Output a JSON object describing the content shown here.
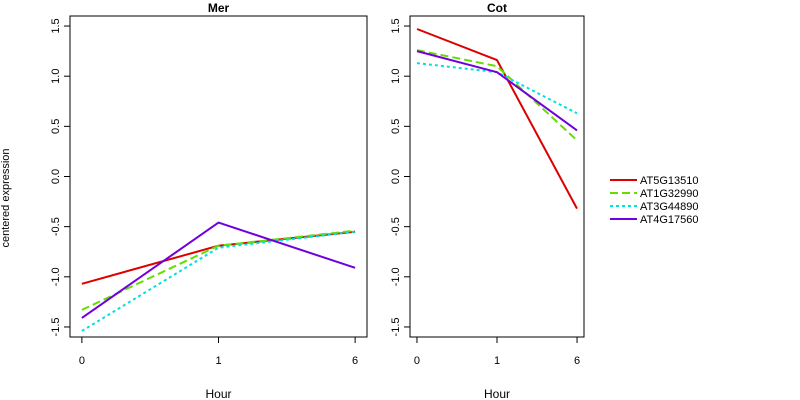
{
  "chart_data": {
    "type": "line",
    "ylabel": "centered expression",
    "xlabel": "Hour",
    "categories": [
      "0",
      "1",
      "6"
    ],
    "ylim": [
      -1.6,
      1.6
    ],
    "yticks": [
      -1.5,
      -1.0,
      -0.5,
      0.0,
      0.5,
      1.0,
      1.5
    ],
    "ytick_labels": [
      "-1.5",
      "-1.0",
      "-0.5",
      "0.0",
      "0.5",
      "1.0",
      "1.5"
    ],
    "legend_position": "right",
    "series_styles": [
      {
        "name": "AT5G13510",
        "color": "#dd0000",
        "dash": "solid"
      },
      {
        "name": "AT1G32990",
        "color": "#66dd00",
        "dash": "dashed"
      },
      {
        "name": "AT3G44890",
        "color": "#00e0e0",
        "dash": "dotted"
      },
      {
        "name": "AT4G17560",
        "color": "#7000dd",
        "dash": "solid"
      }
    ],
    "panels": [
      {
        "title": "Mer",
        "series": [
          {
            "name": "AT5G13510",
            "values": [
              -1.07,
              -0.69,
              -0.55
            ]
          },
          {
            "name": "AT1G32990",
            "values": [
              -1.33,
              -0.69,
              -0.54
            ]
          },
          {
            "name": "AT3G44890",
            "values": [
              -1.54,
              -0.71,
              -0.55
            ]
          },
          {
            "name": "AT4G17560",
            "values": [
              -1.41,
              -0.46,
              -0.91
            ]
          }
        ]
      },
      {
        "title": "Cot",
        "series": [
          {
            "name": "AT5G13510",
            "values": [
              1.47,
              1.16,
              -0.32
            ]
          },
          {
            "name": "AT1G32990",
            "values": [
              1.26,
              1.1,
              0.36
            ]
          },
          {
            "name": "AT3G44890",
            "values": [
              1.13,
              1.04,
              0.63
            ]
          },
          {
            "name": "AT4G17560",
            "values": [
              1.25,
              1.04,
              0.46
            ]
          }
        ]
      }
    ]
  }
}
